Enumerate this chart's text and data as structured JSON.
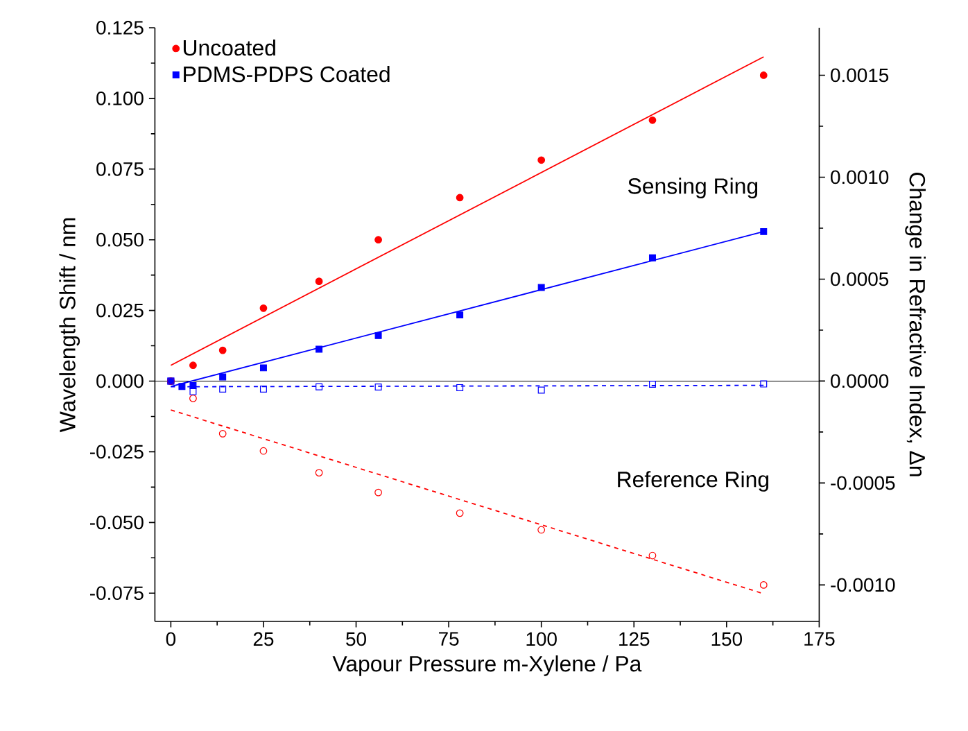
{
  "chart_data": {
    "type": "scatter",
    "xlabel": "Vapour Pressure m-Xylene / Pa",
    "ylabel": "Wavelength Shift / nm",
    "y2label": "Change in Refractive Index, Δn",
    "xlim": [
      -4.3,
      175
    ],
    "ylim": [
      -0.085,
      0.125
    ],
    "y2lim": [
      -0.001179,
      0.001733
    ],
    "xticks": [
      0,
      25,
      50,
      75,
      100,
      125,
      150,
      175
    ],
    "yticks": [
      {
        "value": -0.075,
        "label": "-0.075"
      },
      {
        "value": -0.05,
        "label": "-0.050"
      },
      {
        "value": -0.025,
        "label": "-0.025"
      },
      {
        "value": 0,
        "label": "0.000"
      },
      {
        "value": 0.025,
        "label": "0.025"
      },
      {
        "value": 0.05,
        "label": "0.050"
      },
      {
        "value": 0.075,
        "label": "0.075"
      },
      {
        "value": 0.1,
        "label": "0.100"
      },
      {
        "value": 0.125,
        "label": "0.125"
      }
    ],
    "y2ticks": [
      {
        "value": -0.001,
        "label": "-0.0010"
      },
      {
        "value": -0.0005,
        "label": "-0.0005"
      },
      {
        "value": 0,
        "label": "0.0000"
      },
      {
        "value": 0.0005,
        "label": "0.0005"
      },
      {
        "value": 0.001,
        "label": "0.0010"
      },
      {
        "value": 0.0015,
        "label": "0.0015"
      }
    ],
    "legend": "top left",
    "grid": false,
    "ref_lines": [
      {
        "axis": "y",
        "value": 0,
        "color": "#000000"
      }
    ],
    "annotations": [
      "Sensing Ring",
      "Reference Ring"
    ],
    "series": [
      {
        "name": "Uncoated",
        "color": "#ff0000",
        "marker": "circle",
        "x": [
          0,
          6,
          14,
          25,
          40,
          56,
          78,
          100,
          130,
          160
        ],
        "values": [
          0,
          0.0056,
          0.0109,
          0.0258,
          0.0353,
          0.05,
          0.0649,
          0.0782,
          0.0923,
          0.1082
        ]
      },
      {
        "name": "PDMS-PDPS Coated",
        "color": "#0000ff",
        "marker": "square",
        "x": [
          0,
          3,
          6,
          14,
          25,
          40,
          56,
          78,
          100,
          130,
          160
        ],
        "values": [
          0,
          -0.0019,
          -0.0016,
          0.0015,
          0.0047,
          0.0113,
          0.0161,
          0.0234,
          0.0331,
          0.0436,
          0.0529
        ]
      },
      {
        "color": "#ff0000",
        "marker": "circle",
        "x": [
          0,
          6,
          14,
          25,
          40,
          56,
          78,
          100,
          130,
          160
        ],
        "values": [
          0,
          -0.0061,
          -0.0186,
          -0.0247,
          -0.0324,
          -0.0394,
          -0.0467,
          -0.0526,
          -0.0617,
          -0.0721
        ]
      },
      {
        "color": "#0000ff",
        "marker": "square",
        "x": [
          0,
          6,
          14,
          25,
          40,
          56,
          78,
          100,
          130,
          160
        ],
        "values": [
          0,
          -0.0037,
          -0.0028,
          -0.0028,
          -0.002,
          -0.0021,
          -0.0023,
          -0.0032,
          -0.0011,
          -0.001
        ]
      },
      {
        "type": "line",
        "color": "#ff0000",
        "line_style": "solid",
        "x": [
          0,
          160
        ],
        "values": [
          0.0056,
          0.1147
        ]
      },
      {
        "type": "line",
        "color": "#0000ff",
        "line_style": "solid",
        "x": [
          0,
          160
        ],
        "values": [
          -0.0019,
          0.0529
        ]
      },
      {
        "type": "line",
        "color": "#ff0000",
        "line_style": "dashed",
        "x": [
          0,
          160
        ],
        "values": [
          -0.0102,
          -0.0752
        ]
      },
      {
        "type": "line",
        "color": "#0000ff",
        "line_style": "dashed",
        "x": [
          0,
          160
        ],
        "values": [
          -0.002,
          -0.0015
        ]
      }
    ]
  }
}
